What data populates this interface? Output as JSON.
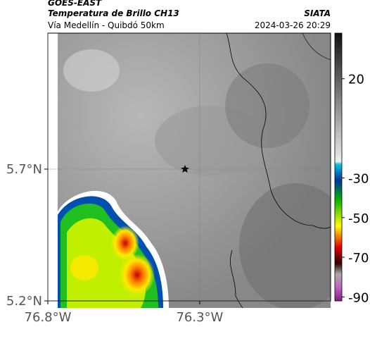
{
  "header": {
    "source": "GOES-EAST",
    "title": "Temperatura de Brillo CH13",
    "route": "Vía Medellín - Quibdó 50km",
    "agency": "SIATA",
    "datetime": "2024-03-26 20:29"
  },
  "map": {
    "latlim": [
      5.2,
      6.216
    ],
    "lonlim": [
      -76.8,
      -75.869
    ],
    "latticks": [
      {
        "value": 5.7,
        "label": "5.7°N"
      },
      {
        "value": 5.2,
        "label": "5.2°N"
      }
    ],
    "lonticks": [
      {
        "value": -76.8,
        "label": "76.8°W"
      },
      {
        "value": -76.3,
        "label": "76.3°W"
      }
    ],
    "grid": true
  },
  "colorbar": {
    "lim": [
      -92,
      43
    ],
    "ticks": [
      20,
      -30,
      -50,
      -70,
      -90
    ]
  }
}
